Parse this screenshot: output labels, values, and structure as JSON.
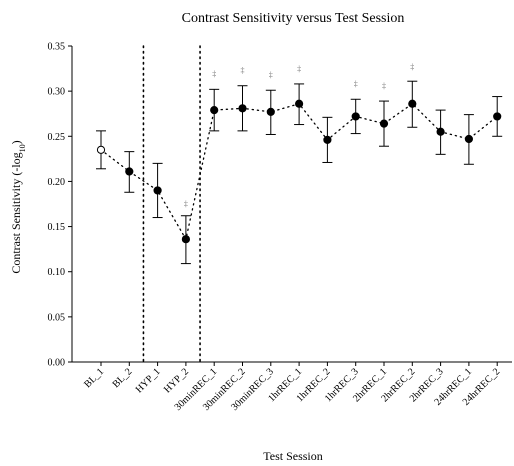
{
  "chart_data": {
    "type": "scatter",
    "title": "Contrast Sensitivity versus Test Session",
    "xlabel": "Test Session",
    "ylabel": "Contrast Sensitivity (-log",
    "ylabel_sub": "10",
    "ylabel_end": ")",
    "ylim": [
      0,
      0.35
    ],
    "yticks": [
      0.0,
      0.05,
      0.1,
      0.15,
      0.2,
      0.25,
      0.3,
      0.35
    ],
    "ytick_labels": [
      "0.00",
      "0.05",
      "0.10",
      "0.15",
      "0.20",
      "0.25",
      "0.30",
      "0.35"
    ],
    "categories": [
      "BL_1",
      "BL_2",
      "HYP_1",
      "HYP_2",
      "30minREC_1",
      "30minREC_2",
      "30minREC_3",
      "1hrREC_1",
      "1hrREC_2",
      "1hrREC_3",
      "2hrREC_1",
      "2hrREC_2",
      "2hrREC_3",
      "24hrREC_1",
      "24hrREC_2"
    ],
    "values": [
      0.235,
      0.211,
      0.19,
      0.136,
      0.279,
      0.281,
      0.277,
      0.286,
      0.246,
      0.272,
      0.264,
      0.286,
      0.255,
      0.247,
      0.272
    ],
    "err_upper": [
      0.256,
      0.233,
      0.22,
      0.162,
      0.302,
      0.306,
      0.301,
      0.308,
      0.271,
      0.291,
      0.289,
      0.311,
      0.279,
      0.274,
      0.294
    ],
    "err_lower": [
      0.214,
      0.188,
      0.16,
      0.109,
      0.256,
      0.256,
      0.252,
      0.263,
      0.221,
      0.253,
      0.239,
      0.26,
      0.23,
      0.219,
      0.25
    ],
    "marker_open": [
      true,
      false,
      false,
      false,
      false,
      false,
      false,
      false,
      false,
      false,
      false,
      false,
      false,
      false,
      false
    ],
    "significance_marks": [
      {
        "index": 3,
        "symbol": "‡",
        "y": 0.172
      },
      {
        "index": 4,
        "symbol": "‡",
        "y": 0.316
      },
      {
        "index": 5,
        "symbol": "‡",
        "y": 0.32
      },
      {
        "index": 6,
        "symbol": "‡",
        "y": 0.315
      },
      {
        "index": 7,
        "symbol": "‡",
        "y": 0.322
      },
      {
        "index": 9,
        "symbol": "‡",
        "y": 0.305
      },
      {
        "index": 10,
        "symbol": "‡",
        "y": 0.303
      },
      {
        "index": 11,
        "symbol": "‡",
        "y": 0.324
      }
    ],
    "vertical_lines_between": [
      [
        1,
        2
      ],
      [
        3,
        4
      ]
    ],
    "grid": false,
    "legend": "none"
  }
}
